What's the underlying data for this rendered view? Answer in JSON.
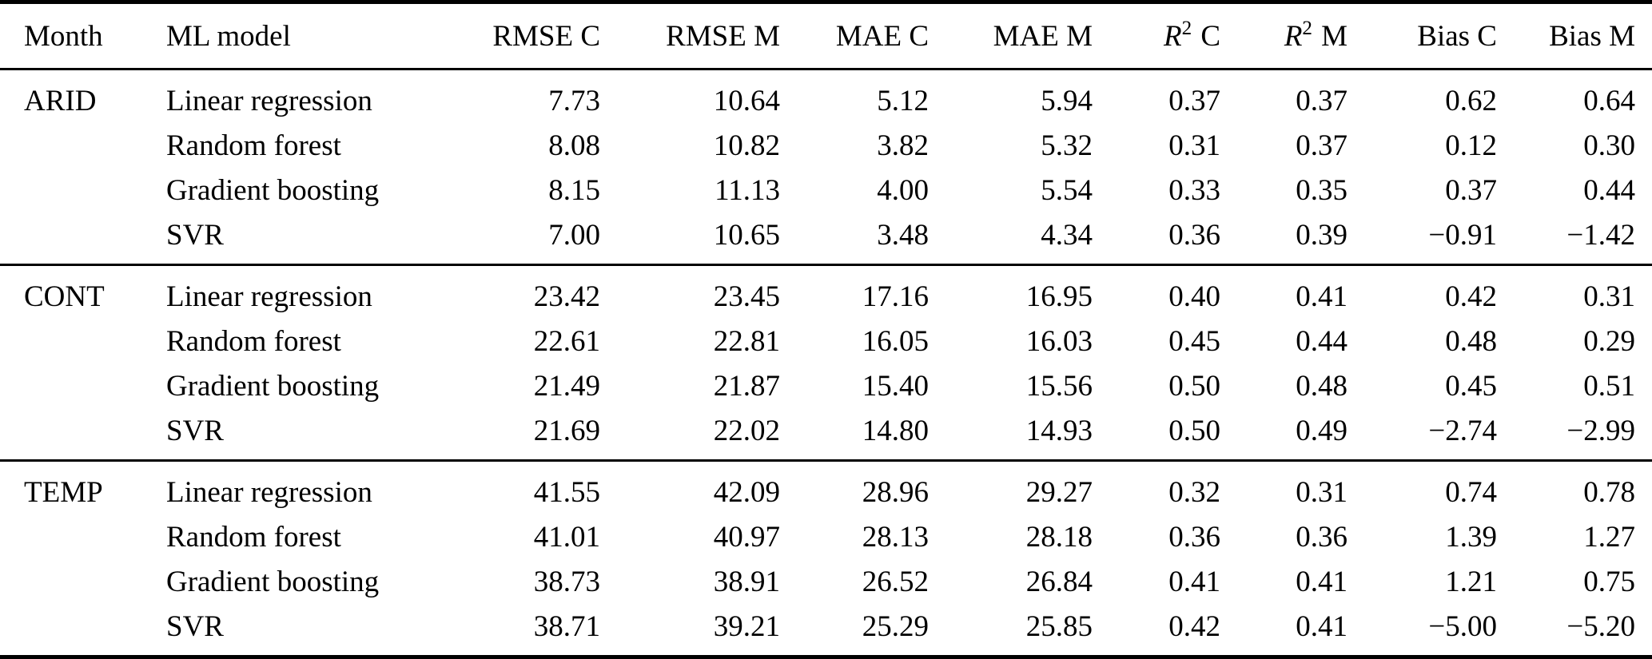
{
  "table": {
    "headers": [
      {
        "text": "Month"
      },
      {
        "text": "ML model"
      },
      {
        "text": "RMSE C"
      },
      {
        "text": "RMSE M"
      },
      {
        "text": "MAE C"
      },
      {
        "text": "MAE M"
      },
      {
        "base": "R",
        "sup": "2",
        "suffix": "C"
      },
      {
        "base": "R",
        "sup": "2",
        "suffix": "M"
      },
      {
        "text": "Bias C"
      },
      {
        "text": "Bias M"
      }
    ],
    "groups": [
      {
        "month": "ARID",
        "rows": [
          {
            "model": "Linear regression",
            "values": [
              "7.73",
              "10.64",
              "5.12",
              "5.94",
              "0.37",
              "0.37",
              "0.62",
              "0.64"
            ]
          },
          {
            "model": "Random forest",
            "values": [
              "8.08",
              "10.82",
              "3.82",
              "5.32",
              "0.31",
              "0.37",
              "0.12",
              "0.30"
            ]
          },
          {
            "model": "Gradient boosting",
            "values": [
              "8.15",
              "11.13",
              "4.00",
              "5.54",
              "0.33",
              "0.35",
              "0.37",
              "0.44"
            ]
          },
          {
            "model": "SVR",
            "values": [
              "7.00",
              "10.65",
              "3.48",
              "4.34",
              "0.36",
              "0.39",
              "−0.91",
              "−1.42"
            ]
          }
        ]
      },
      {
        "month": "CONT",
        "rows": [
          {
            "model": "Linear regression",
            "values": [
              "23.42",
              "23.45",
              "17.16",
              "16.95",
              "0.40",
              "0.41",
              "0.42",
              "0.31"
            ]
          },
          {
            "model": "Random forest",
            "values": [
              "22.61",
              "22.81",
              "16.05",
              "16.03",
              "0.45",
              "0.44",
              "0.48",
              "0.29"
            ]
          },
          {
            "model": "Gradient boosting",
            "values": [
              "21.49",
              "21.87",
              "15.40",
              "15.56",
              "0.50",
              "0.48",
              "0.45",
              "0.51"
            ]
          },
          {
            "model": "SVR",
            "values": [
              "21.69",
              "22.02",
              "14.80",
              "14.93",
              "0.50",
              "0.49",
              "−2.74",
              "−2.99"
            ]
          }
        ]
      },
      {
        "month": "TEMP",
        "rows": [
          {
            "model": "Linear regression",
            "values": [
              "41.55",
              "42.09",
              "28.96",
              "29.27",
              "0.32",
              "0.31",
              "0.74",
              "0.78"
            ]
          },
          {
            "model": "Random forest",
            "values": [
              "41.01",
              "40.97",
              "28.13",
              "28.18",
              "0.36",
              "0.36",
              "1.39",
              "1.27"
            ]
          },
          {
            "model": "Gradient boosting",
            "values": [
              "38.73",
              "38.91",
              "26.52",
              "26.84",
              "0.41",
              "0.41",
              "1.21",
              "0.75"
            ]
          },
          {
            "model": "SVR",
            "values": [
              "38.71",
              "39.21",
              "25.29",
              "25.85",
              "0.42",
              "0.41",
              "−5.00",
              "−5.20"
            ]
          }
        ]
      }
    ]
  }
}
